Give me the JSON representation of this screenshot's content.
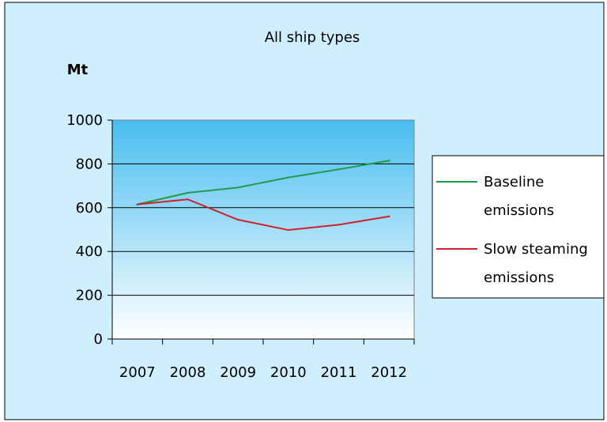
{
  "chart_data": {
    "type": "line",
    "title": "All ship types",
    "ylabel": "Mt",
    "xlabel": "",
    "categories": [
      "2007",
      "2008",
      "2009",
      "2010",
      "2011",
      "2012"
    ],
    "ylim": [
      0,
      1000
    ],
    "yticks": [
      0,
      200,
      400,
      600,
      800,
      1000
    ],
    "grid": true,
    "legend_position": "right",
    "series": [
      {
        "name": "Baseline emissions",
        "legend_lines": [
          "Baseline",
          "emissions"
        ],
        "color": "#1e9a4a",
        "values": [
          615,
          668,
          692,
          738,
          775,
          815
        ]
      },
      {
        "name": "Slow steaming emissions",
        "legend_lines": [
          "Slow steaming",
          "emissions"
        ],
        "color": "#d0202e",
        "values": [
          615,
          638,
          545,
          498,
          522,
          560
        ]
      }
    ]
  },
  "colors": {
    "page_background": "#cfefff",
    "plot_gradient_top": "#48bdf0",
    "plot_gradient_bottom": "#ffffff",
    "gridline": "#000000",
    "axis": "#000000"
  }
}
